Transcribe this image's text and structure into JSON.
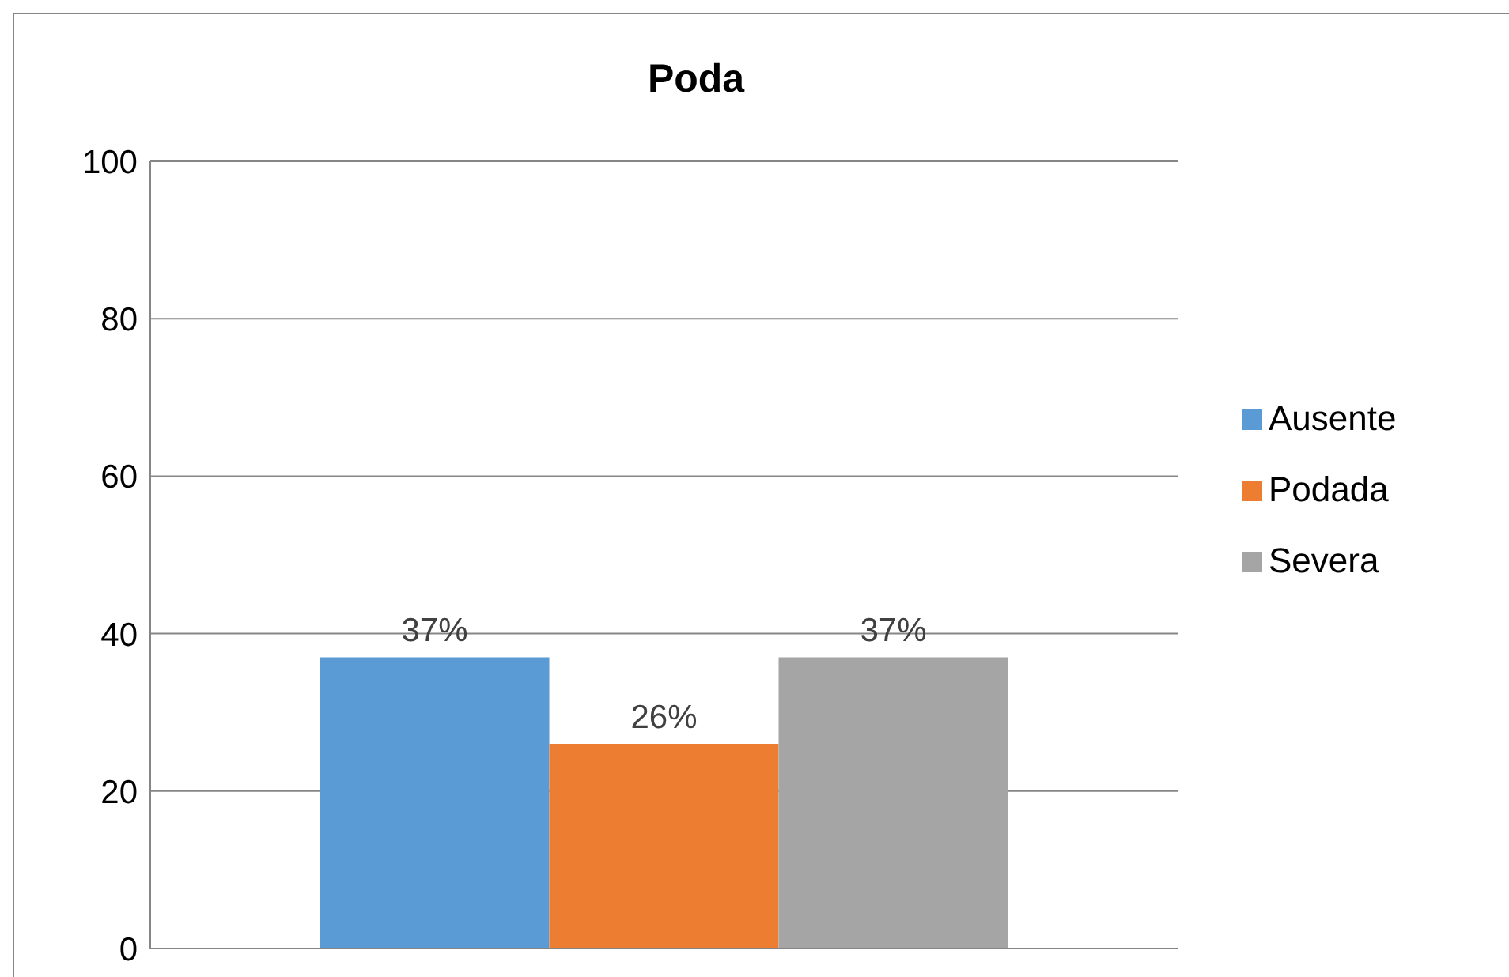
{
  "chart_data": {
    "type": "bar",
    "title": "Poda",
    "categories": [
      null
    ],
    "series": [
      {
        "name": "Ausente",
        "color": "#5b9bd5",
        "values": [
          37
        ],
        "value_labels": [
          "37%"
        ]
      },
      {
        "name": "Podada",
        "color": "#ed7d31",
        "values": [
          26
        ],
        "value_labels": [
          "26%"
        ]
      },
      {
        "name": "Severa",
        "color": "#a5a5a5",
        "values": [
          37
        ],
        "value_labels": [
          "37%"
        ]
      }
    ],
    "ylim": [
      0,
      100
    ],
    "yticks": [
      0,
      20,
      40,
      60,
      80,
      100
    ],
    "grid": "y",
    "legend": "right"
  }
}
